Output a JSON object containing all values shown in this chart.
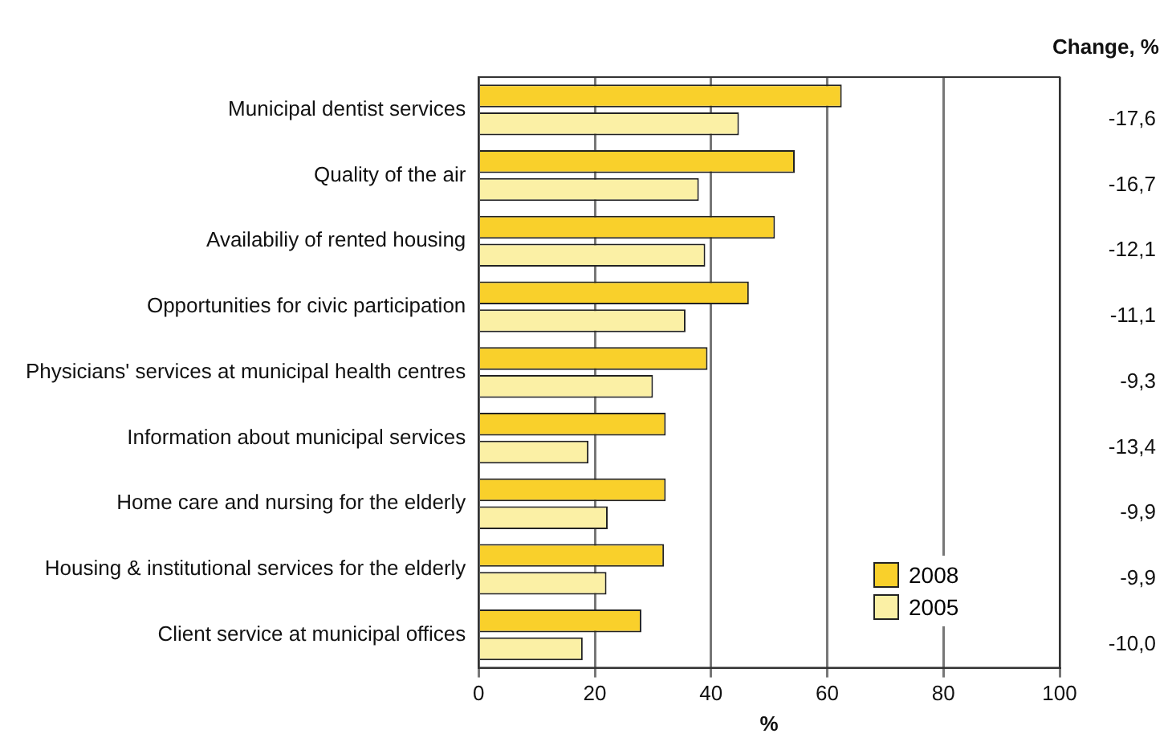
{
  "chart_data": {
    "type": "bar",
    "orientation": "horizontal",
    "xlabel": "%",
    "categories": [
      "Municipal dentist services",
      "Quality of the air",
      "Availabiliy of rented housing",
      "Opportunities for civic participation",
      "Physicians' services at municipal health centres",
      "Information about municipal services",
      "Home care and nursing for the elderly",
      "Housing & institutional services for the elderly",
      "Client service at municipal offices"
    ],
    "series": [
      {
        "name": "2008",
        "color": "#f9d02b",
        "values": [
          62.5,
          54.4,
          51.0,
          46.5,
          39.4,
          32.2,
          32.2,
          31.9,
          28.0
        ]
      },
      {
        "name": "2005",
        "color": "#fbf0a5",
        "values": [
          44.8,
          37.9,
          39.0,
          35.6,
          30.0,
          18.9,
          22.2,
          22.0,
          17.9
        ]
      }
    ],
    "xlim": [
      0,
      100
    ],
    "xticks": [
      0,
      20,
      40,
      60,
      80,
      100
    ],
    "grid": "x",
    "legend": "bottom right",
    "annotations": [
      "Change, %",
      "-17,6",
      "-16,7",
      "-12,1",
      "-11,1",
      "-9,3",
      "-13,4",
      "-9,9",
      "-9,9",
      "-10,0"
    ]
  }
}
